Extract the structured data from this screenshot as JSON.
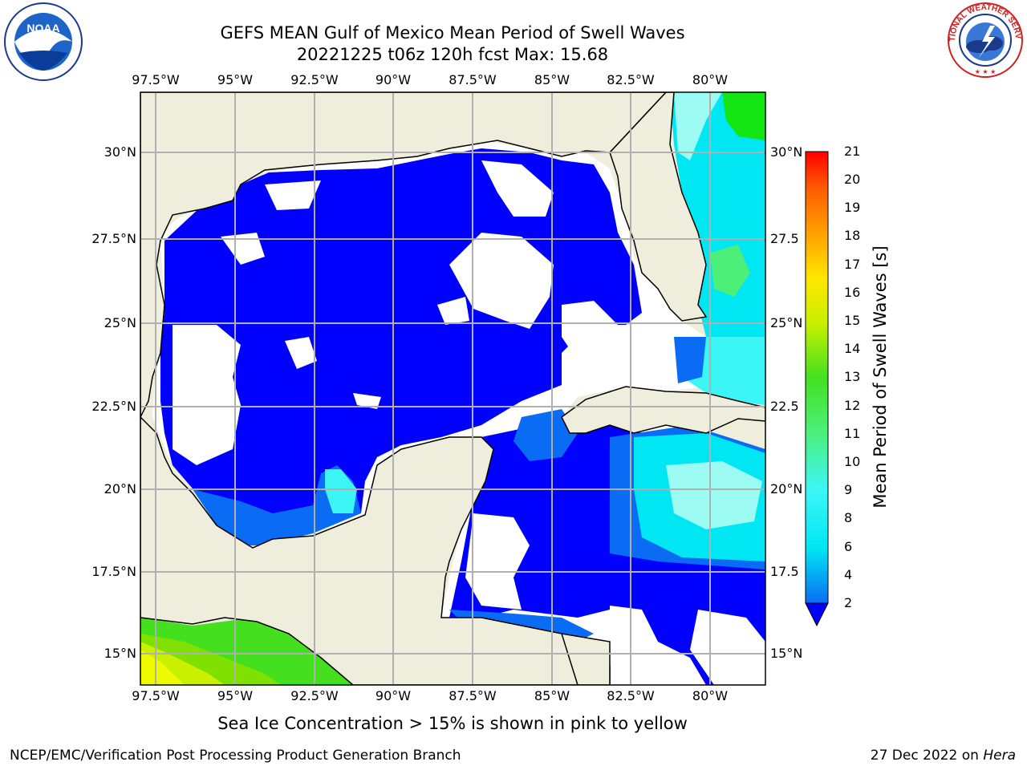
{
  "title": {
    "line1": "GEFS MEAN Gulf of Mexico Mean Period of Swell Waves",
    "line2": "20221225 t06z 120h fcst   Max: 15.68"
  },
  "map": {
    "lon_labels": [
      "97.5°W",
      "95°W",
      "92.5°W",
      "90°W",
      "87.5°W",
      "85°W",
      "82.5°W",
      "80°W"
    ],
    "lat_labels_left": [
      "30°N",
      "27.5°N",
      "25°N",
      "22.5°N",
      "20°N",
      "17.5°N",
      "15°N"
    ],
    "lat_labels_right": [
      "30°N",
      "27.5",
      "25°N",
      "22.5",
      "20°N",
      "17.5",
      "15°N"
    ],
    "colors": {
      "land": "#efeddb",
      "no_data": "#ffffff",
      "grid": "#b0b0b0"
    }
  },
  "colorbar": {
    "label": "Mean Period of Swell Waves [s]",
    "ticks": [
      "2",
      "4",
      "6",
      "8",
      "9",
      "10",
      "11",
      "12",
      "13",
      "14",
      "15",
      "16",
      "17",
      "18",
      "19",
      "20",
      "21"
    ],
    "colors": [
      "#0a6cf5",
      "#00e6f2",
      "#3cf6f6",
      "#9cfcf4",
      "#4cf078",
      "#14e614",
      "#44e020",
      "#80e000",
      "#c8f000",
      "#eefa00",
      "#ffe600",
      "#ffc400",
      "#ffa000",
      "#ff7c00",
      "#ff5a00",
      "#ff2800",
      "#ff0000"
    ],
    "under_color": "#0000ff"
  },
  "note": "Sea Ice Concentration > 15% is shown in pink to yellow",
  "footer": {
    "left": "NCEP/EMC/Verification Post Processing Product Generation Branch",
    "right_date": "27 Dec 2022 on ",
    "right_host": "Hera"
  },
  "logos": {
    "noaa": "NOAA",
    "nws": "NATIONAL WEATHER SERVICE"
  }
}
